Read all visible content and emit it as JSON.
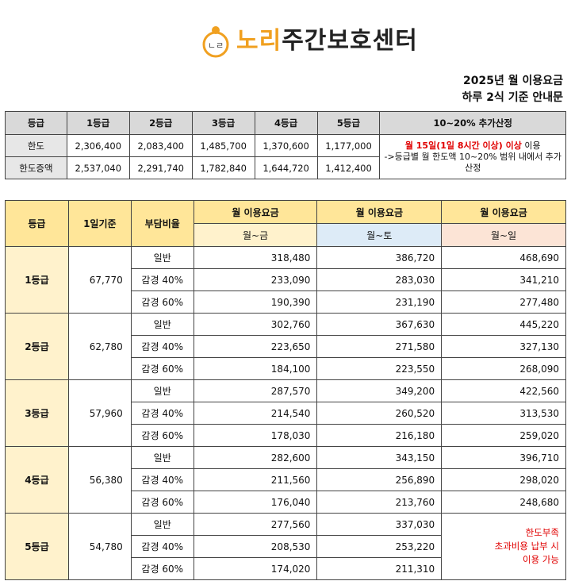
{
  "logo": {
    "icon_text": "ㄴㄹ",
    "name_part1": "노리",
    "name_part2": "주간보호센터"
  },
  "notice": {
    "line1": "2025년 월 이용요금",
    "line2": "하루 2식 기준 안내문"
  },
  "limit_table": {
    "headers": [
      "등급",
      "1등급",
      "2등급",
      "3등급",
      "4등급",
      "5등급",
      "10~20% 추가산정"
    ],
    "rows": [
      {
        "label": "한도",
        "values": [
          "2,306,400",
          "2,083,400",
          "1,485,700",
          "1,370,600",
          "1,177,000"
        ]
      },
      {
        "label": "한도증액",
        "values": [
          "2,537,040",
          "2,291,740",
          "1,782,840",
          "1,644,720",
          "1,412,400"
        ]
      }
    ],
    "note_red": "월 15일(1일 8시간 이상) 이상",
    "note_after": " 이용",
    "note_line2": "->등급별 월 한도액 10~20% 범위 내에서 추가산정"
  },
  "fee_table": {
    "headers": {
      "grade": "등급",
      "day": "1일기준",
      "ratio": "부담비율",
      "monthly": "월 이용요금"
    },
    "sub_headers": [
      "월~금",
      "월~토",
      "월~일"
    ],
    "grades": [
      {
        "grade": "1등급",
        "day": "67,770",
        "rows": [
          {
            "ratio": "일반",
            "values": [
              "318,480",
              "386,720",
              "468,690"
            ]
          },
          {
            "ratio": "감경 40%",
            "values": [
              "233,090",
              "283,030",
              "341,210"
            ]
          },
          {
            "ratio": "감경 60%",
            "values": [
              "190,390",
              "231,190",
              "277,480"
            ]
          }
        ]
      },
      {
        "grade": "2등급",
        "day": "62,780",
        "rows": [
          {
            "ratio": "일반",
            "values": [
              "302,760",
              "367,630",
              "445,220"
            ]
          },
          {
            "ratio": "감경 40%",
            "values": [
              "223,650",
              "271,580",
              "327,130"
            ]
          },
          {
            "ratio": "감경 60%",
            "values": [
              "184,100",
              "223,550",
              "268,090"
            ]
          }
        ]
      },
      {
        "grade": "3등급",
        "day": "57,960",
        "rows": [
          {
            "ratio": "일반",
            "values": [
              "287,570",
              "349,200",
              "422,560"
            ]
          },
          {
            "ratio": "감경 40%",
            "values": [
              "214,540",
              "260,520",
              "313,530"
            ]
          },
          {
            "ratio": "감경 60%",
            "values": [
              "178,030",
              "216,180",
              "259,020"
            ]
          }
        ]
      },
      {
        "grade": "4등급",
        "day": "56,380",
        "rows": [
          {
            "ratio": "일반",
            "values": [
              "282,600",
              "343,150",
              "396,710"
            ]
          },
          {
            "ratio": "감경 40%",
            "values": [
              "211,560",
              "256,890",
              "298,020"
            ]
          },
          {
            "ratio": "감경 60%",
            "values": [
              "176,040",
              "213,760",
              "248,680"
            ]
          }
        ]
      },
      {
        "grade": "5등급",
        "day": "54,780",
        "rows": [
          {
            "ratio": "일반",
            "values": [
              "277,560",
              "337,030"
            ]
          },
          {
            "ratio": "감경 40%",
            "values": [
              "208,530",
              "253,220"
            ]
          },
          {
            "ratio": "감경 60%",
            "values": [
              "174,020",
              "211,310"
            ]
          }
        ]
      }
    ],
    "extra_note": [
      "한도부족",
      "초과비용 납부 시",
      "이용 가능"
    ]
  },
  "colors": {
    "accent": "#f0a020",
    "red": "#e00000",
    "grade_bg": "#fff2cc",
    "header_bg": "#ffe699"
  }
}
